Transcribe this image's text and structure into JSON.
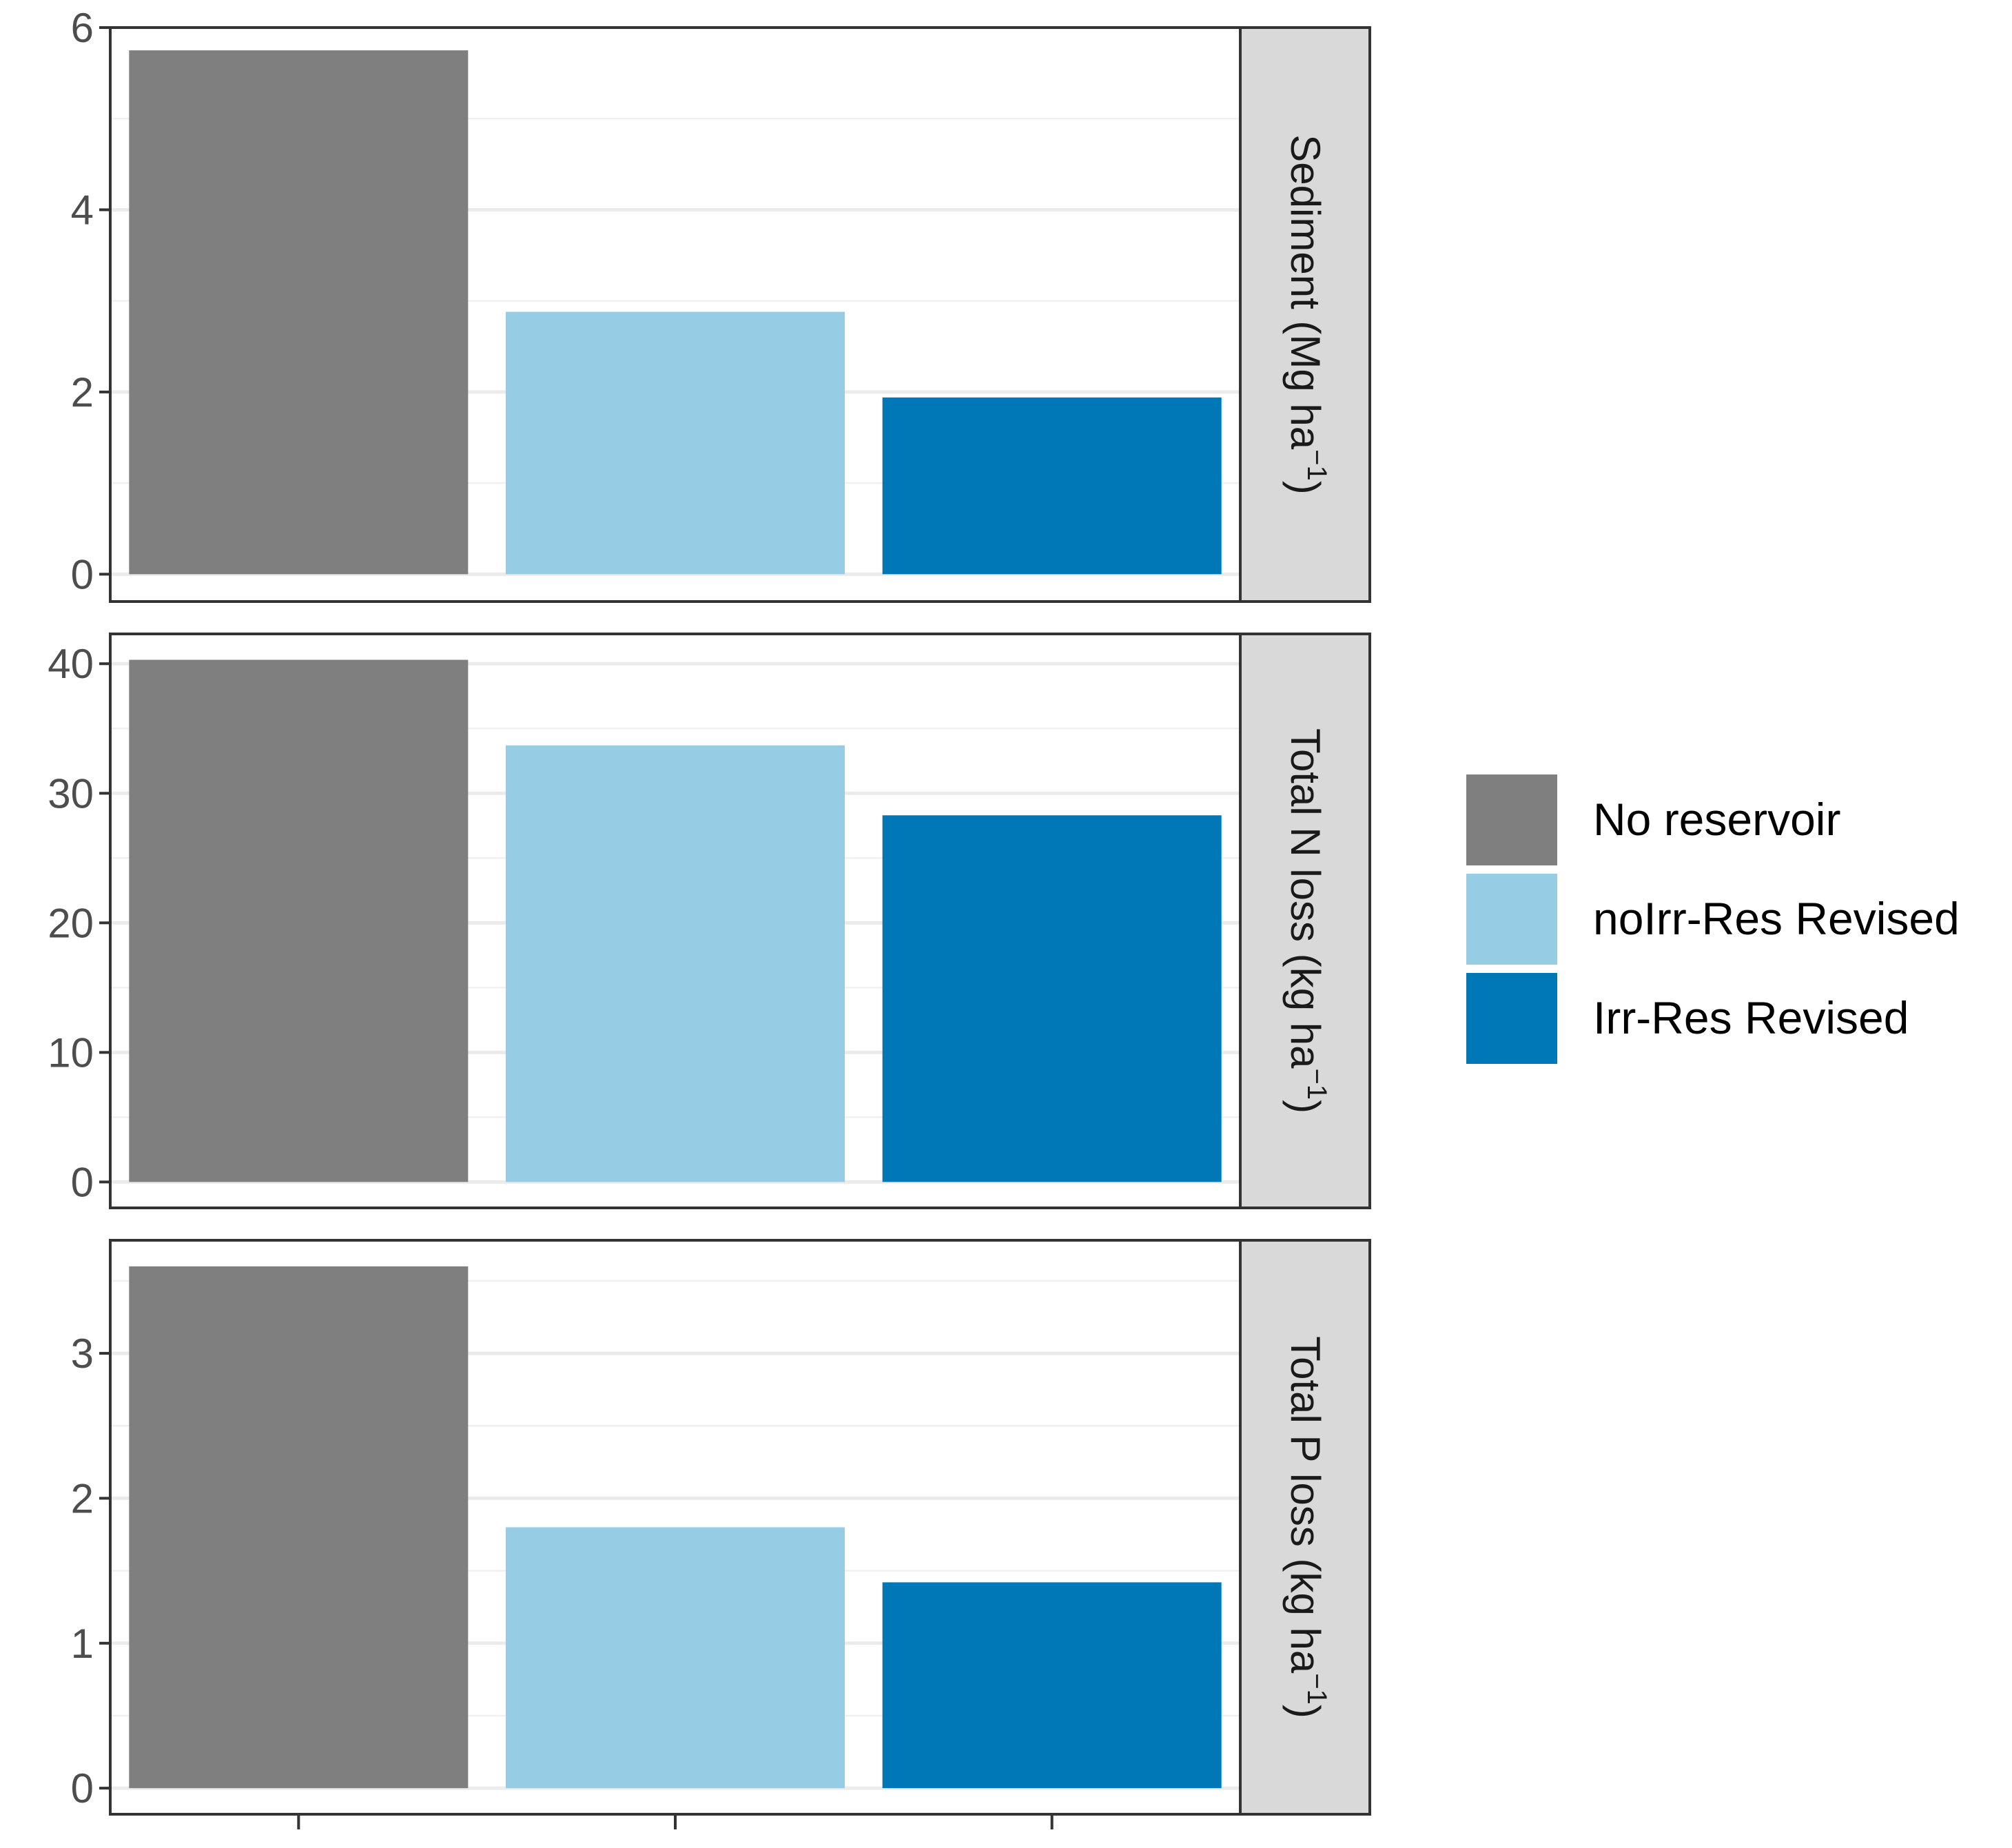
{
  "chart_data": {
    "type": "bar",
    "layout": "faceted-vertical",
    "categories": [
      "No reservoir",
      "noIrr-Res Revised",
      "Irr-Res Revised"
    ],
    "x_tick_labels": [
      "",
      "",
      ""
    ],
    "grid": true,
    "legend": {
      "position": "right",
      "entries": [
        {
          "label": "No reservoir",
          "color": "#7f7f7f"
        },
        {
          "label": "noIrr-Res Revised",
          "color": "#97cde4"
        },
        {
          "label": "Irr-Res Revised",
          "color": "#0078b8"
        }
      ]
    },
    "panels": [
      {
        "strip_label": "Sediment (Mg ha",
        "strip_sup": "−1",
        "strip_close": ")",
        "values": [
          5.75,
          2.88,
          1.94
        ],
        "ylim": [
          -0.3,
          6.0
        ],
        "yticks": [
          0,
          2,
          4,
          6
        ],
        "ytick_labels": [
          "0",
          "2",
          "4",
          "6"
        ],
        "minor_ticks": [
          1,
          3,
          5
        ]
      },
      {
        "strip_label": "Total N loss (kg ha",
        "strip_sup": "−1",
        "strip_close": ")",
        "values": [
          40.3,
          33.7,
          28.3
        ],
        "ylim": [
          -2.0,
          42.3
        ],
        "yticks": [
          0,
          10,
          20,
          30,
          40
        ],
        "ytick_labels": [
          "0",
          "10",
          "20",
          "30",
          "40"
        ],
        "minor_ticks": [
          5,
          15,
          25,
          35
        ]
      },
      {
        "strip_label": "Total P loss (kg ha",
        "strip_sup": "−1",
        "strip_close": ")",
        "values": [
          3.6,
          1.8,
          1.42
        ],
        "ylim": [
          -0.18,
          3.78
        ],
        "yticks": [
          0,
          1,
          2,
          3
        ],
        "ytick_labels": [
          "0",
          "1",
          "2",
          "3"
        ],
        "minor_ticks": [
          0.5,
          1.5,
          2.5,
          3.5
        ]
      }
    ]
  }
}
